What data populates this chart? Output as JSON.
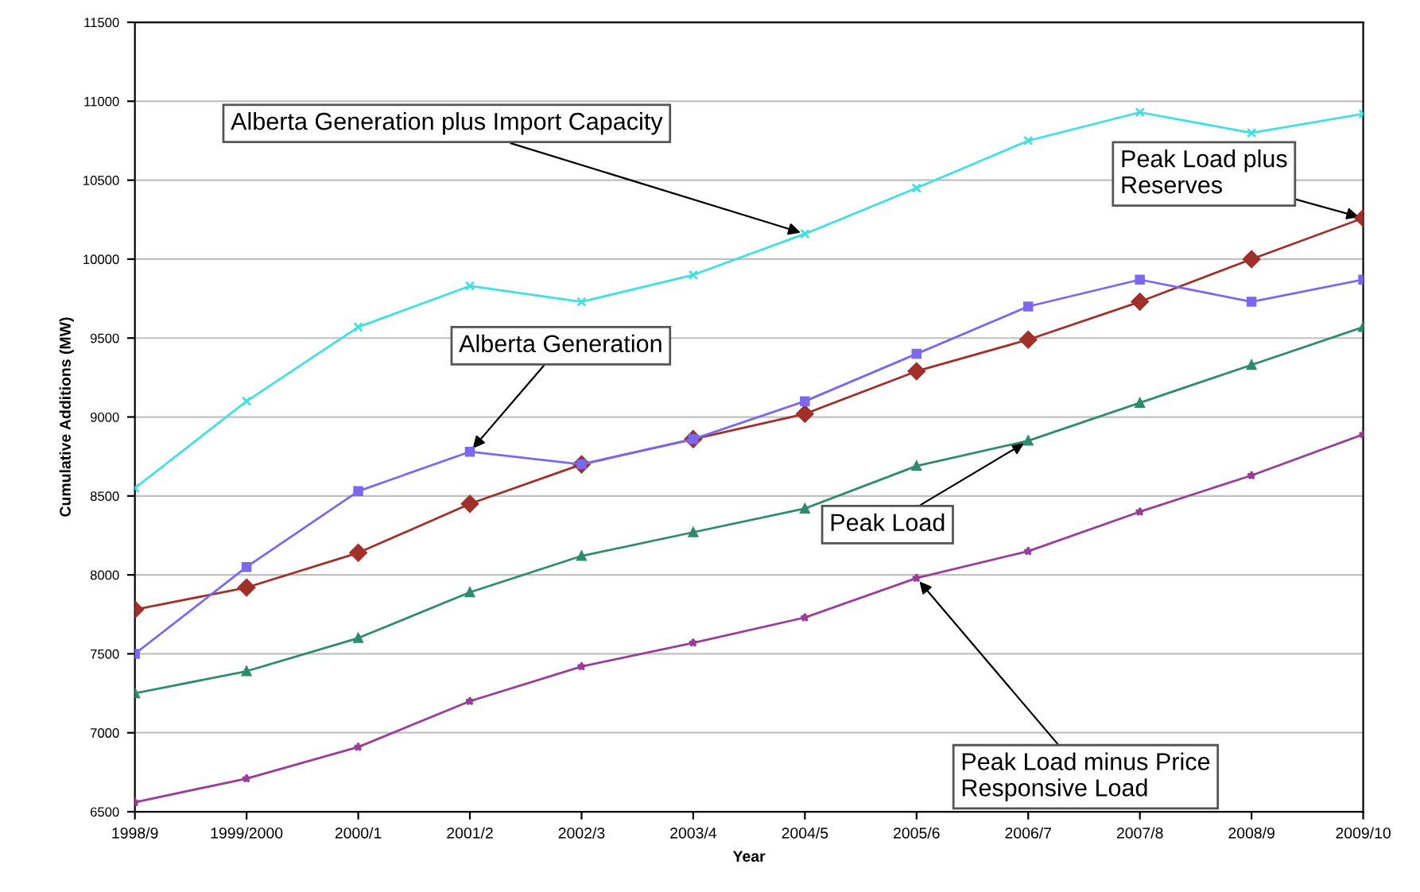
{
  "chart_data": {
    "type": "line",
    "xlabel": "Year",
    "ylabel": "Cumulative Additions (MW)",
    "categories": [
      "1998/9",
      "1999/2000",
      "2000/1",
      "2001/2",
      "2002/3",
      "2003/4",
      "2004/5",
      "2005/6",
      "2006/7",
      "2007/8",
      "2008/9",
      "2009/10"
    ],
    "ylim": [
      6500,
      11500
    ],
    "yticks": [
      6500,
      7000,
      7500,
      8000,
      8500,
      9000,
      9500,
      10000,
      10500,
      11000,
      11500
    ],
    "grid": "y",
    "series": [
      {
        "color": "#40e0e0",
        "marker": "cross",
        "values": [
          8550,
          9100,
          9570,
          9830,
          9730,
          9900,
          10160,
          10450,
          10750,
          10930,
          10800,
          10920
        ]
      },
      {
        "color": "#7b68ee",
        "marker": "square",
        "values": [
          7500,
          8050,
          8530,
          8780,
          8700,
          8860,
          9100,
          9400,
          9700,
          9870,
          9730,
          9870
        ]
      },
      {
        "color": "#a0302a",
        "marker": "diamond",
        "values": [
          7780,
          7920,
          8140,
          8450,
          8700,
          8860,
          9020,
          9290,
          9490,
          9730,
          10000,
          10260
        ]
      },
      {
        "color": "#2e8b6e",
        "marker": "triangle",
        "values": [
          7250,
          7390,
          7600,
          7890,
          8120,
          8270,
          8420,
          8690,
          8850,
          9090,
          9330,
          9570
        ]
      },
      {
        "color": "#9a3c9a",
        "marker": "star",
        "values": [
          6560,
          6710,
          6910,
          7200,
          7420,
          7570,
          7730,
          7980,
          8150,
          8400,
          8630,
          8890
        ]
      }
    ],
    "annotations": [
      {
        "text": "Alberta Generation plus Import Capacity",
        "x": "2004/5",
        "y": 10160
      },
      {
        "text": "Alberta Generation",
        "x": "2001/2",
        "y": 8780
      },
      {
        "text": "Peak Load plus\nReserves",
        "x": "2009/10",
        "y": 10260
      },
      {
        "text": "Peak Load",
        "x": "2006/7",
        "y": 8850
      },
      {
        "text": "Peak Load minus Price\nResponsive Load",
        "x": "2005/6",
        "y": 7980
      }
    ]
  }
}
